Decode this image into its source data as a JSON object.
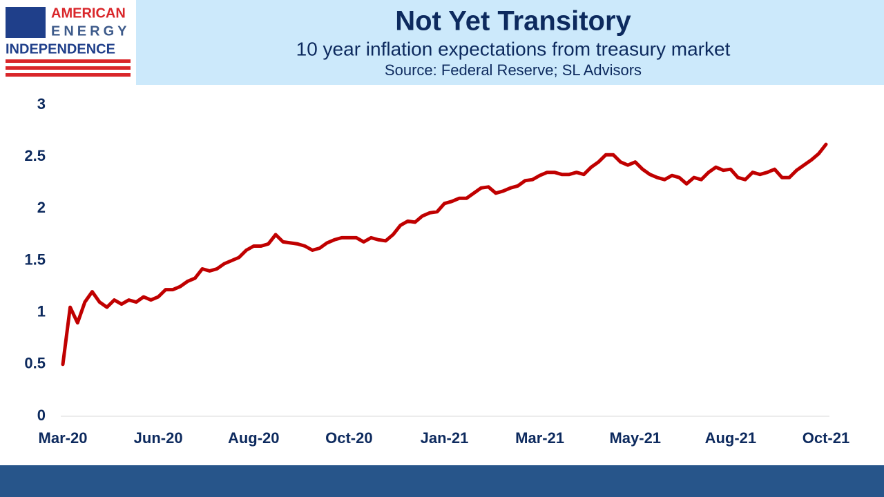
{
  "logo": [
    "AMERICAN",
    "ENERGY",
    "INDEPENDENCE"
  ],
  "chart_data": {
    "type": "line",
    "title": "Not Yet Transitory",
    "subtitle": "10 year inflation expectations from treasury market",
    "source": "Source: Federal Reserve; SL Advisors",
    "categories": [
      "Mar-20",
      null,
      null,
      null,
      null,
      null,
      null,
      null,
      null,
      null,
      null,
      null,
      null,
      "Jun-20",
      null,
      null,
      null,
      null,
      null,
      null,
      null,
      null,
      null,
      null,
      null,
      null,
      "Aug-20",
      null,
      null,
      null,
      null,
      null,
      null,
      null,
      null,
      null,
      null,
      null,
      null,
      "Oct-20",
      null,
      null,
      null,
      null,
      null,
      null,
      null,
      null,
      null,
      null,
      null,
      null,
      "Jan-21",
      null,
      null,
      null,
      null,
      null,
      null,
      null,
      null,
      null,
      null,
      null,
      null,
      "Mar-21",
      null,
      null,
      null,
      null,
      null,
      null,
      null,
      null,
      null,
      null,
      null,
      null,
      "May-21",
      null,
      null,
      null,
      null,
      null,
      null,
      null,
      null,
      null,
      null,
      null,
      null,
      "Aug-21",
      null,
      null,
      null,
      null,
      null,
      null,
      null,
      null,
      null,
      null,
      null,
      null,
      "Oct-21"
    ],
    "series": [
      {
        "color": "#c00000",
        "values": [
          0.5,
          1.05,
          0.9,
          1.1,
          1.2,
          1.1,
          1.05,
          1.12,
          1.08,
          1.12,
          1.1,
          1.15,
          1.12,
          1.15,
          1.22,
          1.22,
          1.25,
          1.3,
          1.33,
          1.42,
          1.4,
          1.42,
          1.47,
          1.5,
          1.53,
          1.6,
          1.64,
          1.64,
          1.66,
          1.75,
          1.68,
          1.67,
          1.66,
          1.64,
          1.6,
          1.62,
          1.67,
          1.7,
          1.72,
          1.72,
          1.72,
          1.68,
          1.72,
          1.7,
          1.69,
          1.75,
          1.84,
          1.88,
          1.87,
          1.93,
          1.96,
          1.97,
          2.05,
          2.07,
          2.1,
          2.1,
          2.15,
          2.2,
          2.21,
          2.15,
          2.17,
          2.2,
          2.22,
          2.27,
          2.28,
          2.32,
          2.35,
          2.35,
          2.33,
          2.33,
          2.35,
          2.33,
          2.4,
          2.45,
          2.52,
          2.52,
          2.45,
          2.42,
          2.45,
          2.38,
          2.33,
          2.3,
          2.28,
          2.32,
          2.3,
          2.24,
          2.3,
          2.28,
          2.35,
          2.4,
          2.37,
          2.38,
          2.3,
          2.28,
          2.35,
          2.33,
          2.35,
          2.38,
          2.3,
          2.3,
          2.37,
          2.42,
          2.47,
          2.53,
          2.62
        ]
      }
    ],
    "ylim": [
      0,
      3
    ],
    "yticks": [
      0,
      0.5,
      1,
      1.5,
      2,
      2.5,
      3
    ],
    "grid": false
  }
}
